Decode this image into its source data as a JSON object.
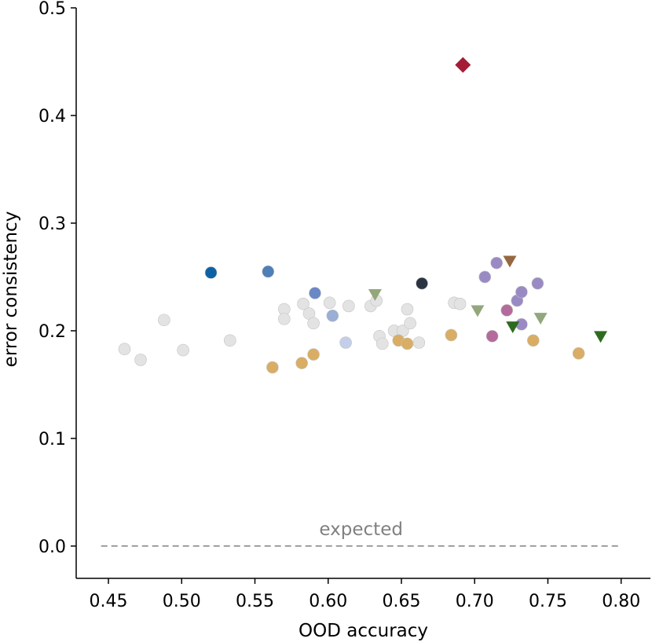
{
  "chart_data": {
    "type": "scatter",
    "title": "",
    "xlabel": "OOD accuracy",
    "ylabel": "error consistency",
    "xlim": [
      0.428,
      0.82
    ],
    "ylim": [
      -0.03,
      0.5
    ],
    "x_ticks": [
      0.45,
      0.5,
      0.55,
      0.6,
      0.65,
      0.7,
      0.75,
      0.8
    ],
    "x_tick_labels": [
      "0.45",
      "0.50",
      "0.55",
      "0.60",
      "0.65",
      "0.70",
      "0.75",
      "0.80"
    ],
    "y_ticks": [
      0.0,
      0.1,
      0.2,
      0.3,
      0.4,
      0.5
    ],
    "y_tick_labels": [
      "0.0",
      "0.1",
      "0.2",
      "0.3",
      "0.4",
      "0.5"
    ],
    "grid": false,
    "legend": "none",
    "expected_line": {
      "x": [
        0.445,
        0.8
      ],
      "y": 0.0,
      "label": "expected",
      "color": "#808080",
      "style": "dashed"
    },
    "points": [
      {
        "x": 0.692,
        "y": 0.447,
        "marker": "diamond",
        "color": "#a51c36"
      },
      {
        "x": 0.461,
        "y": 0.183,
        "marker": "circle",
        "color": "#e3e3e3"
      },
      {
        "x": 0.472,
        "y": 0.173,
        "marker": "circle",
        "color": "#e3e3e3"
      },
      {
        "x": 0.488,
        "y": 0.21,
        "marker": "circle",
        "color": "#e3e3e3"
      },
      {
        "x": 0.501,
        "y": 0.182,
        "marker": "circle",
        "color": "#e3e3e3"
      },
      {
        "x": 0.533,
        "y": 0.191,
        "marker": "circle",
        "color": "#e3e3e3"
      },
      {
        "x": 0.57,
        "y": 0.22,
        "marker": "circle",
        "color": "#e3e3e3"
      },
      {
        "x": 0.57,
        "y": 0.211,
        "marker": "circle",
        "color": "#e3e3e3"
      },
      {
        "x": 0.583,
        "y": 0.225,
        "marker": "circle",
        "color": "#e3e3e3"
      },
      {
        "x": 0.587,
        "y": 0.216,
        "marker": "circle",
        "color": "#e3e3e3"
      },
      {
        "x": 0.59,
        "y": 0.207,
        "marker": "circle",
        "color": "#e3e3e3"
      },
      {
        "x": 0.601,
        "y": 0.226,
        "marker": "circle",
        "color": "#e3e3e3"
      },
      {
        "x": 0.614,
        "y": 0.223,
        "marker": "circle",
        "color": "#e3e3e3"
      },
      {
        "x": 0.629,
        "y": 0.223,
        "marker": "circle",
        "color": "#e3e3e3"
      },
      {
        "x": 0.633,
        "y": 0.228,
        "marker": "circle",
        "color": "#e3e3e3"
      },
      {
        "x": 0.635,
        "y": 0.195,
        "marker": "circle",
        "color": "#e3e3e3"
      },
      {
        "x": 0.637,
        "y": 0.188,
        "marker": "circle",
        "color": "#e3e3e3"
      },
      {
        "x": 0.645,
        "y": 0.2,
        "marker": "circle",
        "color": "#e3e3e3"
      },
      {
        "x": 0.651,
        "y": 0.2,
        "marker": "circle",
        "color": "#e3e3e3"
      },
      {
        "x": 0.654,
        "y": 0.22,
        "marker": "circle",
        "color": "#e3e3e3"
      },
      {
        "x": 0.656,
        "y": 0.207,
        "marker": "circle",
        "color": "#e3e3e3"
      },
      {
        "x": 0.662,
        "y": 0.189,
        "marker": "circle",
        "color": "#e3e3e3"
      },
      {
        "x": 0.686,
        "y": 0.226,
        "marker": "circle",
        "color": "#e3e3e3"
      },
      {
        "x": 0.69,
        "y": 0.225,
        "marker": "circle",
        "color": "#e3e3e3"
      },
      {
        "x": 0.52,
        "y": 0.254,
        "marker": "circle",
        "color": "#0d62a5"
      },
      {
        "x": 0.559,
        "y": 0.255,
        "marker": "circle",
        "color": "#4e7fb9"
      },
      {
        "x": 0.591,
        "y": 0.235,
        "marker": "circle",
        "color": "#6a88c6"
      },
      {
        "x": 0.603,
        "y": 0.214,
        "marker": "circle",
        "color": "#9aaed6"
      },
      {
        "x": 0.612,
        "y": 0.189,
        "marker": "circle",
        "color": "#c3cfe8"
      },
      {
        "x": 0.664,
        "y": 0.244,
        "marker": "circle",
        "color": "#2c3442"
      },
      {
        "x": 0.562,
        "y": 0.166,
        "marker": "circle",
        "color": "#d9ad64"
      },
      {
        "x": 0.582,
        "y": 0.17,
        "marker": "circle",
        "color": "#d9ad64"
      },
      {
        "x": 0.59,
        "y": 0.178,
        "marker": "circle",
        "color": "#d9ad64"
      },
      {
        "x": 0.648,
        "y": 0.191,
        "marker": "circle",
        "color": "#d9ad64"
      },
      {
        "x": 0.654,
        "y": 0.188,
        "marker": "circle",
        "color": "#d9ad64"
      },
      {
        "x": 0.684,
        "y": 0.196,
        "marker": "circle",
        "color": "#d9ad64"
      },
      {
        "x": 0.74,
        "y": 0.191,
        "marker": "circle",
        "color": "#d9ad64"
      },
      {
        "x": 0.771,
        "y": 0.179,
        "marker": "circle",
        "color": "#d9ad64"
      },
      {
        "x": 0.707,
        "y": 0.25,
        "marker": "circle",
        "color": "#9a8ac4"
      },
      {
        "x": 0.715,
        "y": 0.263,
        "marker": "circle",
        "color": "#9a8ac4"
      },
      {
        "x": 0.729,
        "y": 0.228,
        "marker": "circle",
        "color": "#9a8ac4"
      },
      {
        "x": 0.732,
        "y": 0.236,
        "marker": "circle",
        "color": "#9a8ac4"
      },
      {
        "x": 0.732,
        "y": 0.206,
        "marker": "circle",
        "color": "#9a8ac4"
      },
      {
        "x": 0.743,
        "y": 0.244,
        "marker": "circle",
        "color": "#9a8ac4"
      },
      {
        "x": 0.712,
        "y": 0.195,
        "marker": "circle",
        "color": "#b56a9c"
      },
      {
        "x": 0.722,
        "y": 0.219,
        "marker": "circle",
        "color": "#b56a9c"
      },
      {
        "x": 0.632,
        "y": 0.234,
        "marker": "triangle-down",
        "color": "#93a77c"
      },
      {
        "x": 0.702,
        "y": 0.219,
        "marker": "triangle-down",
        "color": "#93a77c"
      },
      {
        "x": 0.745,
        "y": 0.212,
        "marker": "triangle-down",
        "color": "#93a77c"
      },
      {
        "x": 0.724,
        "y": 0.265,
        "marker": "triangle-down",
        "color": "#96683f"
      },
      {
        "x": 0.726,
        "y": 0.204,
        "marker": "triangle-down",
        "color": "#2e6b1f"
      },
      {
        "x": 0.786,
        "y": 0.195,
        "marker": "triangle-down",
        "color": "#2e6b1f"
      }
    ]
  }
}
